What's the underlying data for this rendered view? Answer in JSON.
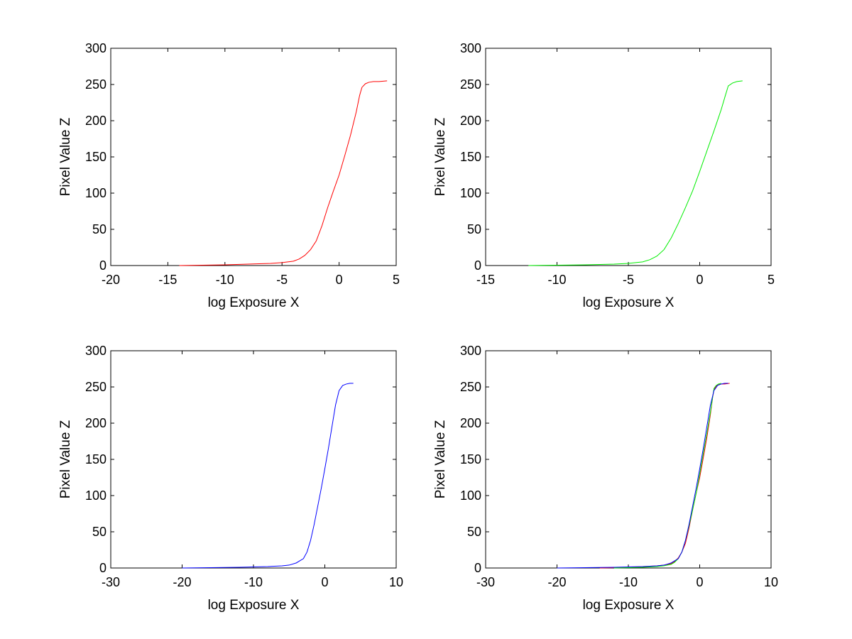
{
  "chart_data": [
    {
      "type": "line",
      "xlabel": "log Exposure X",
      "ylabel": "Pixel Value Z",
      "xlim": [
        -20,
        5
      ],
      "ylim": [
        0,
        300
      ],
      "xticks": [
        "-20",
        "-15",
        "-10",
        "-5",
        "0",
        "5"
      ],
      "yticks": [
        "0",
        "50",
        "100",
        "150",
        "200",
        "250",
        "300"
      ],
      "grid": false,
      "series": [
        {
          "color": "#ff0000",
          "x": [
            -14,
            -12,
            -10,
            -8,
            -6,
            -5,
            -4,
            -3.5,
            -3,
            -2.5,
            -2,
            -1.5,
            -1,
            -0.5,
            0,
            0.5,
            1,
            1.5,
            1.8,
            2,
            2.3,
            2.6,
            3,
            3.5,
            4.2
          ],
          "y": [
            0,
            0.5,
            1,
            2,
            3,
            4,
            6,
            9,
            14,
            22,
            34,
            55,
            80,
            103,
            125,
            152,
            180,
            212,
            235,
            246,
            251,
            253,
            254,
            254,
            255
          ]
        }
      ]
    },
    {
      "type": "line",
      "xlabel": "log Exposure X",
      "ylabel": "Pixel Value Z",
      "xlim": [
        -15,
        5
      ],
      "ylim": [
        0,
        300
      ],
      "xticks": [
        "-15",
        "-10",
        "-5",
        "0",
        "5"
      ],
      "yticks": [
        "0",
        "50",
        "100",
        "150",
        "200",
        "250",
        "300"
      ],
      "grid": false,
      "series": [
        {
          "color": "#00ee00",
          "x": [
            -12,
            -10,
            -8,
            -6,
            -5,
            -4,
            -3.5,
            -3,
            -2.5,
            -2,
            -1.5,
            -1,
            -0.5,
            0,
            0.5,
            1,
            1.5,
            1.8,
            2,
            2.3,
            2.6,
            3
          ],
          "y": [
            0,
            0.5,
            1,
            2,
            3,
            5,
            8,
            13,
            22,
            38,
            58,
            80,
            103,
            130,
            158,
            186,
            215,
            235,
            248,
            252,
            254,
            255
          ]
        }
      ]
    },
    {
      "type": "line",
      "xlabel": "log Exposure X",
      "ylabel": "Pixel Value Z",
      "xlim": [
        -30,
        10
      ],
      "ylim": [
        0,
        300
      ],
      "xticks": [
        "-30",
        "-20",
        "-10",
        "0",
        "10"
      ],
      "yticks": [
        "0",
        "50",
        "100",
        "150",
        "200",
        "250",
        "300"
      ],
      "grid": false,
      "series": [
        {
          "color": "#0000ff",
          "x": [
            -20,
            -16,
            -12,
            -10,
            -8,
            -6,
            -5,
            -4,
            -3,
            -2.5,
            -2,
            -1.5,
            -1,
            -0.5,
            0,
            0.5,
            1,
            1.5,
            2,
            2.5,
            3,
            3.5,
            4
          ],
          "y": [
            0,
            0.5,
            1,
            1.5,
            2,
            3,
            4,
            7,
            13,
            22,
            38,
            60,
            85,
            110,
            137,
            165,
            195,
            225,
            245,
            252,
            254,
            255,
            255
          ]
        }
      ]
    },
    {
      "type": "line",
      "xlabel": "log Exposure X",
      "ylabel": "Pixel Value Z",
      "xlim": [
        -30,
        10
      ],
      "ylim": [
        0,
        300
      ],
      "xticks": [
        "-30",
        "-20",
        "-10",
        "0",
        "10"
      ],
      "yticks": [
        "0",
        "50",
        "100",
        "150",
        "200",
        "250",
        "300"
      ],
      "grid": false,
      "series": [
        {
          "color": "#ff0000",
          "x": [
            -14,
            -12,
            -10,
            -8,
            -6,
            -5,
            -4,
            -3.5,
            -3,
            -2.5,
            -2,
            -1.5,
            -1,
            -0.5,
            0,
            0.5,
            1,
            1.5,
            1.8,
            2,
            2.3,
            2.6,
            3,
            3.5,
            4.2
          ],
          "y": [
            0,
            0.5,
            1,
            2,
            3,
            4,
            6,
            9,
            14,
            22,
            34,
            55,
            80,
            103,
            125,
            152,
            180,
            212,
            235,
            246,
            251,
            253,
            254,
            254,
            255
          ]
        },
        {
          "color": "#00ee00",
          "x": [
            -12,
            -10,
            -8,
            -6,
            -5,
            -4,
            -3.5,
            -3,
            -2.5,
            -2,
            -1.5,
            -1,
            -0.5,
            0,
            0.5,
            1,
            1.5,
            1.8,
            2,
            2.3,
            2.6,
            3
          ],
          "y": [
            0,
            0.5,
            1,
            2,
            3,
            5,
            8,
            13,
            22,
            38,
            58,
            80,
            103,
            130,
            158,
            186,
            215,
            235,
            248,
            252,
            254,
            255
          ]
        },
        {
          "color": "#0000ff",
          "x": [
            -20,
            -16,
            -12,
            -10,
            -8,
            -6,
            -5,
            -4,
            -3,
            -2.5,
            -2,
            -1.5,
            -1,
            -0.5,
            0,
            0.5,
            1,
            1.5,
            2,
            2.5,
            3,
            3.5,
            4
          ],
          "y": [
            0,
            0.5,
            1,
            1.5,
            2,
            3,
            4,
            7,
            13,
            22,
            38,
            60,
            85,
            110,
            137,
            165,
            195,
            225,
            245,
            252,
            254,
            255,
            255
          ]
        }
      ]
    }
  ]
}
